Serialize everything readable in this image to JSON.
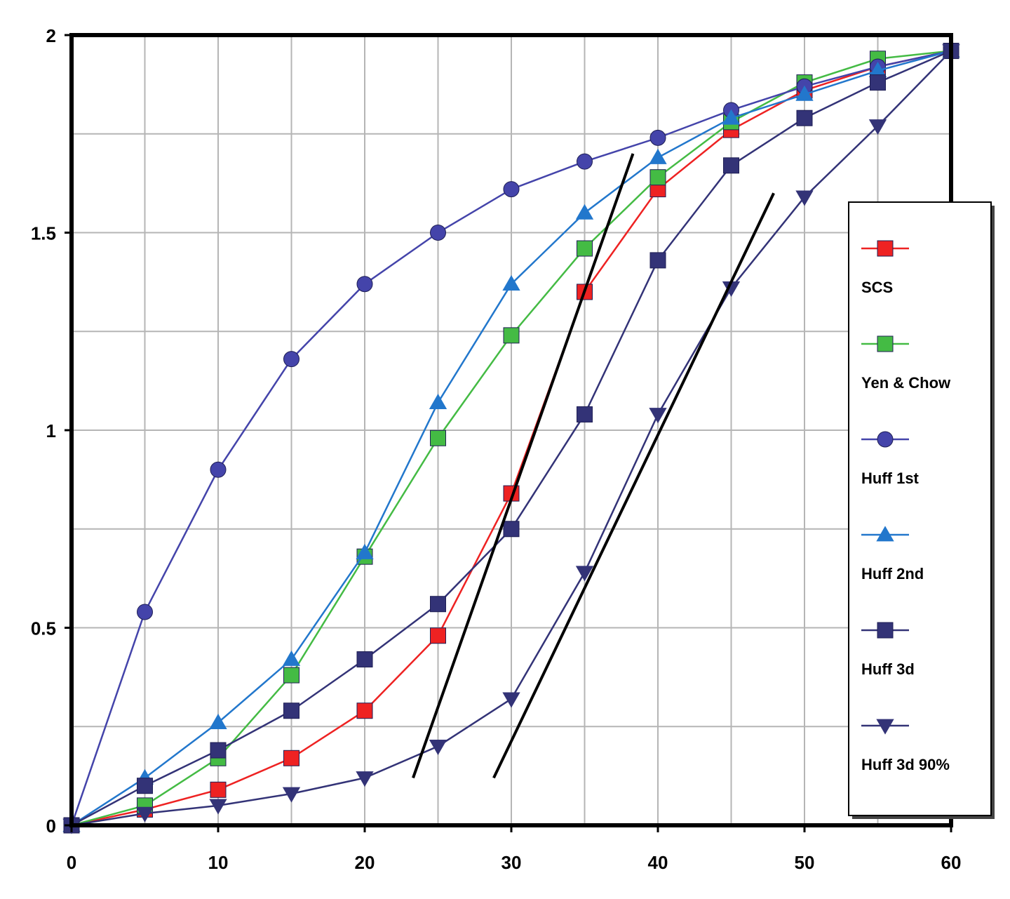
{
  "chart_data": {
    "type": "line",
    "title": "",
    "xlabel": "",
    "ylabel": "",
    "xlim": [
      0,
      60
    ],
    "ylim": [
      0,
      2
    ],
    "x_ticks": [
      0,
      10,
      20,
      30,
      40,
      50,
      60
    ],
    "x_tick_labels": [
      "0",
      "10",
      "20",
      "30",
      "40",
      "50",
      "60"
    ],
    "y_ticks": [
      0,
      0.5,
      1,
      1.5,
      2
    ],
    "y_tick_labels": [
      "0",
      "0.5",
      "1",
      "1.5",
      "2"
    ],
    "grid": true,
    "legend_position": "right",
    "x": [
      0,
      5,
      10,
      15,
      20,
      25,
      30,
      35,
      40,
      45,
      50,
      55,
      60
    ],
    "series": [
      {
        "name": "SCS",
        "color": "#ee2222",
        "marker": "square",
        "values": [
          0,
          0.04,
          0.09,
          0.17,
          0.29,
          0.48,
          0.84,
          1.35,
          1.61,
          1.76,
          1.86,
          1.92,
          1.96
        ]
      },
      {
        "name": "Yen & Chow",
        "color": "#44bb44",
        "marker": "square",
        "values": [
          0,
          0.05,
          0.17,
          0.38,
          0.68,
          0.98,
          1.24,
          1.46,
          1.64,
          1.78,
          1.88,
          1.94,
          1.96
        ]
      },
      {
        "name": "Huff 1st",
        "color": "#4444aa",
        "marker": "circle",
        "values": [
          0,
          0.54,
          0.9,
          1.18,
          1.37,
          1.5,
          1.61,
          1.68,
          1.74,
          1.81,
          1.87,
          1.92,
          1.96
        ]
      },
      {
        "name": "Huff 2nd",
        "color": "#2277cc",
        "marker": "triangle-up",
        "values": [
          0,
          0.12,
          0.26,
          0.42,
          0.69,
          1.07,
          1.37,
          1.55,
          1.69,
          1.79,
          1.85,
          1.91,
          1.96
        ]
      },
      {
        "name": "Huff 3d",
        "color": "#333377",
        "marker": "square",
        "values": [
          0,
          0.1,
          0.19,
          0.29,
          0.42,
          0.56,
          0.75,
          1.04,
          1.43,
          1.67,
          1.79,
          1.88,
          1.96
        ]
      },
      {
        "name": "Huff 3d 90%",
        "color": "#333377",
        "marker": "triangle-down",
        "values": [
          0,
          0.03,
          0.05,
          0.08,
          0.12,
          0.2,
          0.32,
          0.64,
          1.04,
          1.36,
          1.59,
          1.77,
          1.96
        ]
      }
    ],
    "annotation_lines": [
      {
        "color": "#000000",
        "points": [
          [
            23.3,
            0.12
          ],
          [
            38.3,
            1.7
          ]
        ]
      },
      {
        "color": "#000000",
        "points": [
          [
            28.8,
            0.12
          ],
          [
            47.9,
            1.6
          ]
        ]
      }
    ]
  }
}
